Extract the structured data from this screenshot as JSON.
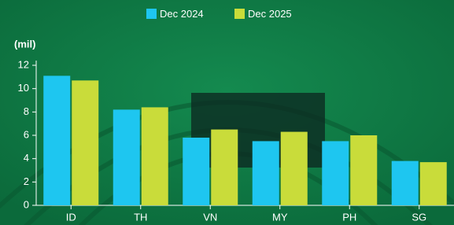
{
  "chart_data": {
    "type": "bar",
    "y_label": "(mil)",
    "categories": [
      "ID",
      "TH",
      "VN",
      "MY",
      "PH",
      "SG"
    ],
    "series": [
      {
        "name": "Dec 2024",
        "color": "#1ec6f0",
        "values": [
          11.1,
          8.2,
          5.8,
          5.5,
          5.5,
          3.8
        ]
      },
      {
        "name": "Dec 2025",
        "color": "#c9dc3a",
        "values": [
          10.7,
          8.4,
          6.5,
          6.3,
          6.0,
          3.7
        ]
      }
    ],
    "ylim": [
      0,
      12
    ],
    "yticks": [
      0,
      2,
      4,
      6,
      8,
      10,
      12
    ],
    "grid": false,
    "legend": "top"
  }
}
